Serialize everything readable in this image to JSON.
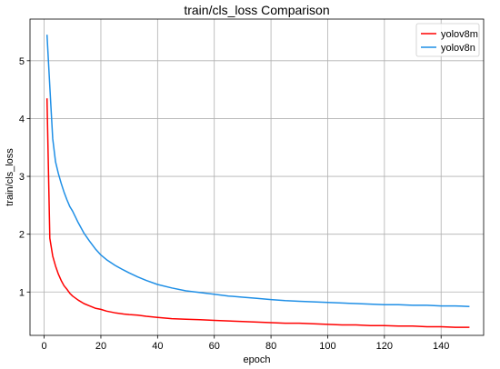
{
  "chart_data": {
    "type": "line",
    "title": "train/cls_loss Comparison",
    "xlabel": "epoch",
    "ylabel": "train/cls_loss",
    "xlim": [
      -5,
      155
    ],
    "ylim": [
      0.25,
      5.72
    ],
    "xticks": [
      0,
      20,
      40,
      60,
      80,
      100,
      120,
      140
    ],
    "yticks": [
      1,
      2,
      3,
      4,
      5
    ],
    "grid": true,
    "legend_position": "top-right",
    "series": [
      {
        "name": "yolov8m",
        "color": "#ff0000",
        "x": [
          1,
          2,
          3,
          4,
          5,
          6,
          7,
          8,
          9,
          10,
          12,
          14,
          16,
          18,
          20,
          22,
          25,
          28,
          30,
          33,
          36,
          40,
          45,
          50,
          55,
          60,
          65,
          70,
          75,
          80,
          85,
          90,
          95,
          100,
          105,
          110,
          115,
          120,
          125,
          130,
          135,
          140,
          145,
          150
        ],
        "y": [
          4.35,
          1.93,
          1.62,
          1.45,
          1.31,
          1.2,
          1.11,
          1.05,
          0.98,
          0.93,
          0.86,
          0.8,
          0.76,
          0.72,
          0.7,
          0.67,
          0.64,
          0.62,
          0.61,
          0.6,
          0.58,
          0.56,
          0.54,
          0.53,
          0.52,
          0.51,
          0.5,
          0.49,
          0.48,
          0.47,
          0.46,
          0.46,
          0.45,
          0.44,
          0.43,
          0.43,
          0.42,
          0.42,
          0.41,
          0.41,
          0.4,
          0.4,
          0.39,
          0.39
        ]
      },
      {
        "name": "yolov8n",
        "color": "#1f8fe6",
        "x": [
          1,
          2,
          3,
          4,
          5,
          6,
          7,
          8,
          9,
          10,
          12,
          14,
          16,
          18,
          20,
          22,
          25,
          28,
          30,
          33,
          36,
          40,
          45,
          50,
          55,
          60,
          65,
          70,
          75,
          80,
          85,
          90,
          95,
          100,
          105,
          110,
          115,
          120,
          125,
          130,
          135,
          140,
          145,
          150
        ],
        "y": [
          5.45,
          4.55,
          3.65,
          3.25,
          3.05,
          2.88,
          2.73,
          2.6,
          2.48,
          2.4,
          2.2,
          2.02,
          1.88,
          1.75,
          1.64,
          1.56,
          1.46,
          1.38,
          1.33,
          1.26,
          1.2,
          1.13,
          1.07,
          1.02,
          0.99,
          0.96,
          0.93,
          0.91,
          0.89,
          0.87,
          0.85,
          0.84,
          0.83,
          0.82,
          0.81,
          0.8,
          0.79,
          0.78,
          0.78,
          0.77,
          0.77,
          0.76,
          0.76,
          0.75
        ]
      }
    ]
  }
}
